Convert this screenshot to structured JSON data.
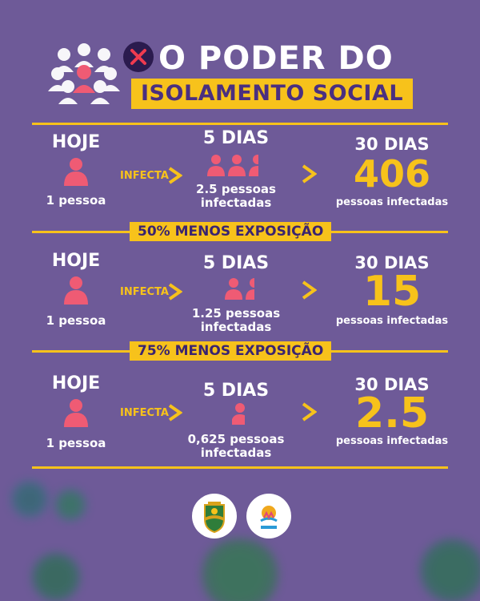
{
  "header": {
    "title_line1": "O PODER DO",
    "title_line2": "ISOLAMENTO SOCIAL"
  },
  "sections": [
    {
      "today_label": "HOJE",
      "today_caption": "1 pessoa",
      "infecta_label": "INFECTA",
      "mid_label": "5 DIAS",
      "mid_caption_line1": "2.5 pessoas",
      "mid_caption_line2": "infectadas",
      "mid_people_count": 2.5,
      "end_label": "30 DIAS",
      "end_value": "406",
      "end_caption": "pessoas infectadas"
    },
    {
      "banner": "50% MENOS EXPOSIÇÃO",
      "today_label": "HOJE",
      "today_caption": "1 pessoa",
      "infecta_label": "INFECTA",
      "mid_label": "5 DIAS",
      "mid_caption_line1": "1.25 pessoas",
      "mid_caption_line2": "infectadas",
      "mid_people_count": 1.25,
      "end_label": "30 DIAS",
      "end_value": "15",
      "end_caption": "pessoas infectadas"
    },
    {
      "banner": "75% MENOS EXPOSIÇÃO",
      "today_label": "HOJE",
      "today_caption": "1 pessoa",
      "infecta_label": "INFECTA",
      "mid_label": "5 DIAS",
      "mid_caption_line1": "0,625 pessoas",
      "mid_caption_line2": "infectadas",
      "mid_people_count": 0.625,
      "end_label": "30 DIAS",
      "end_value": "2.5",
      "end_caption": "pessoas infectadas"
    }
  ],
  "logos": [
    "municipal-crest-icon",
    "unicef-municipio-aprovado-icon"
  ],
  "colors": {
    "background": "#6e5a98",
    "accent": "#f7c21b",
    "person": "#ef5b74",
    "text": "#ffffff"
  }
}
